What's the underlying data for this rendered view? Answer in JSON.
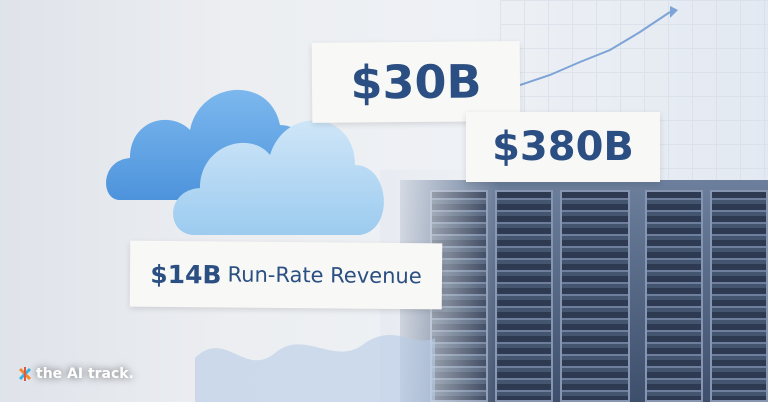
{
  "cards": {
    "top": "$30B",
    "middle": "$380B",
    "bottom_amount": "$14B",
    "bottom_label": "Run-Rate Revenue"
  },
  "logo": {
    "text": "the AI track."
  },
  "colors": {
    "accent": "#2b4f82",
    "cloud_light": "#a9d0f0",
    "cloud_dark": "#5b9fe0"
  }
}
